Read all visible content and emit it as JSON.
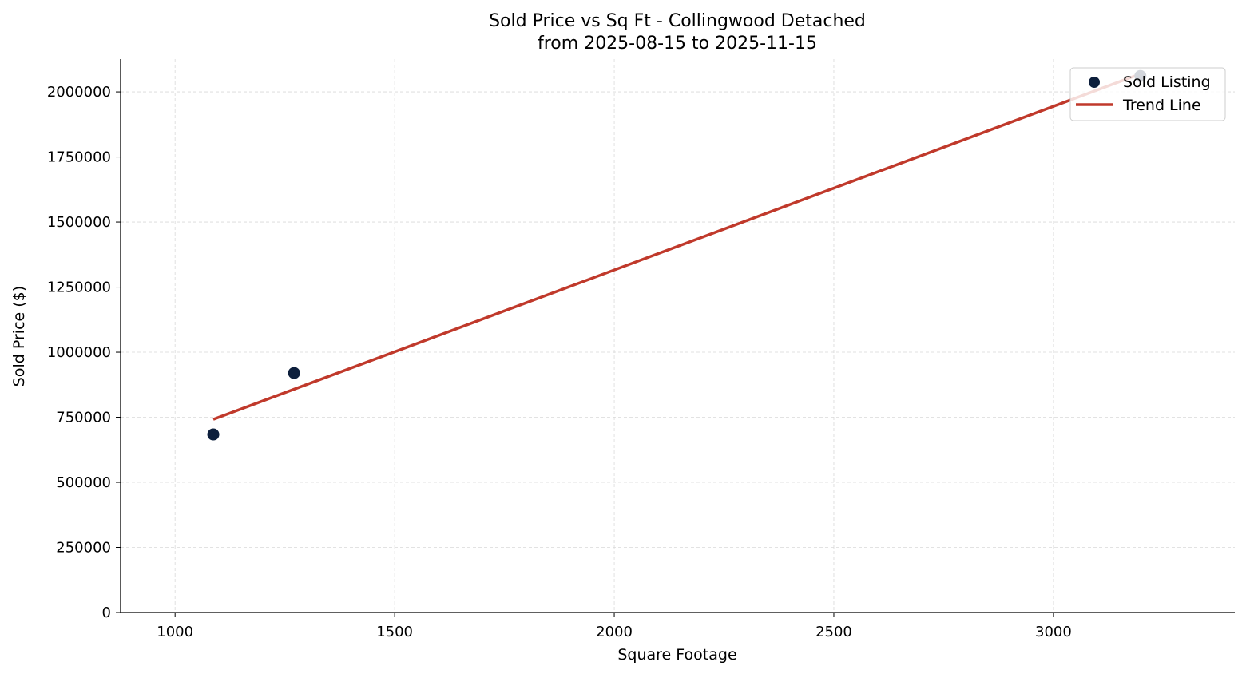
{
  "chart_data": {
    "type": "scatter",
    "title": "Sold Price vs Sq Ft - Collingwood Detached",
    "subtitle": "from 2025-08-15 to 2025-11-15",
    "xlabel": "Square Footage",
    "ylabel": "Sold Price ($)",
    "xlim": [
      876,
      3413
    ],
    "ylim": [
      0,
      2126000
    ],
    "xticks": [
      1000,
      1500,
      2000,
      2500,
      3000
    ],
    "yticks": [
      0,
      250000,
      500000,
      750000,
      1000000,
      1250000,
      1500000,
      1750000,
      2000000
    ],
    "grid": true,
    "legend_position": "top-right",
    "series": [
      {
        "name": "Sold Listing",
        "kind": "scatter",
        "color": "#0d1f3c",
        "points": [
          {
            "x": 1087,
            "y": 684000
          },
          {
            "x": 1271,
            "y": 920000
          },
          {
            "x": 3198,
            "y": 2061000
          }
        ]
      },
      {
        "name": "Trend Line",
        "kind": "line",
        "color": "#c0392b",
        "points": [
          {
            "x": 1087,
            "y": 742000
          },
          {
            "x": 3198,
            "y": 2069000
          }
        ]
      }
    ]
  }
}
